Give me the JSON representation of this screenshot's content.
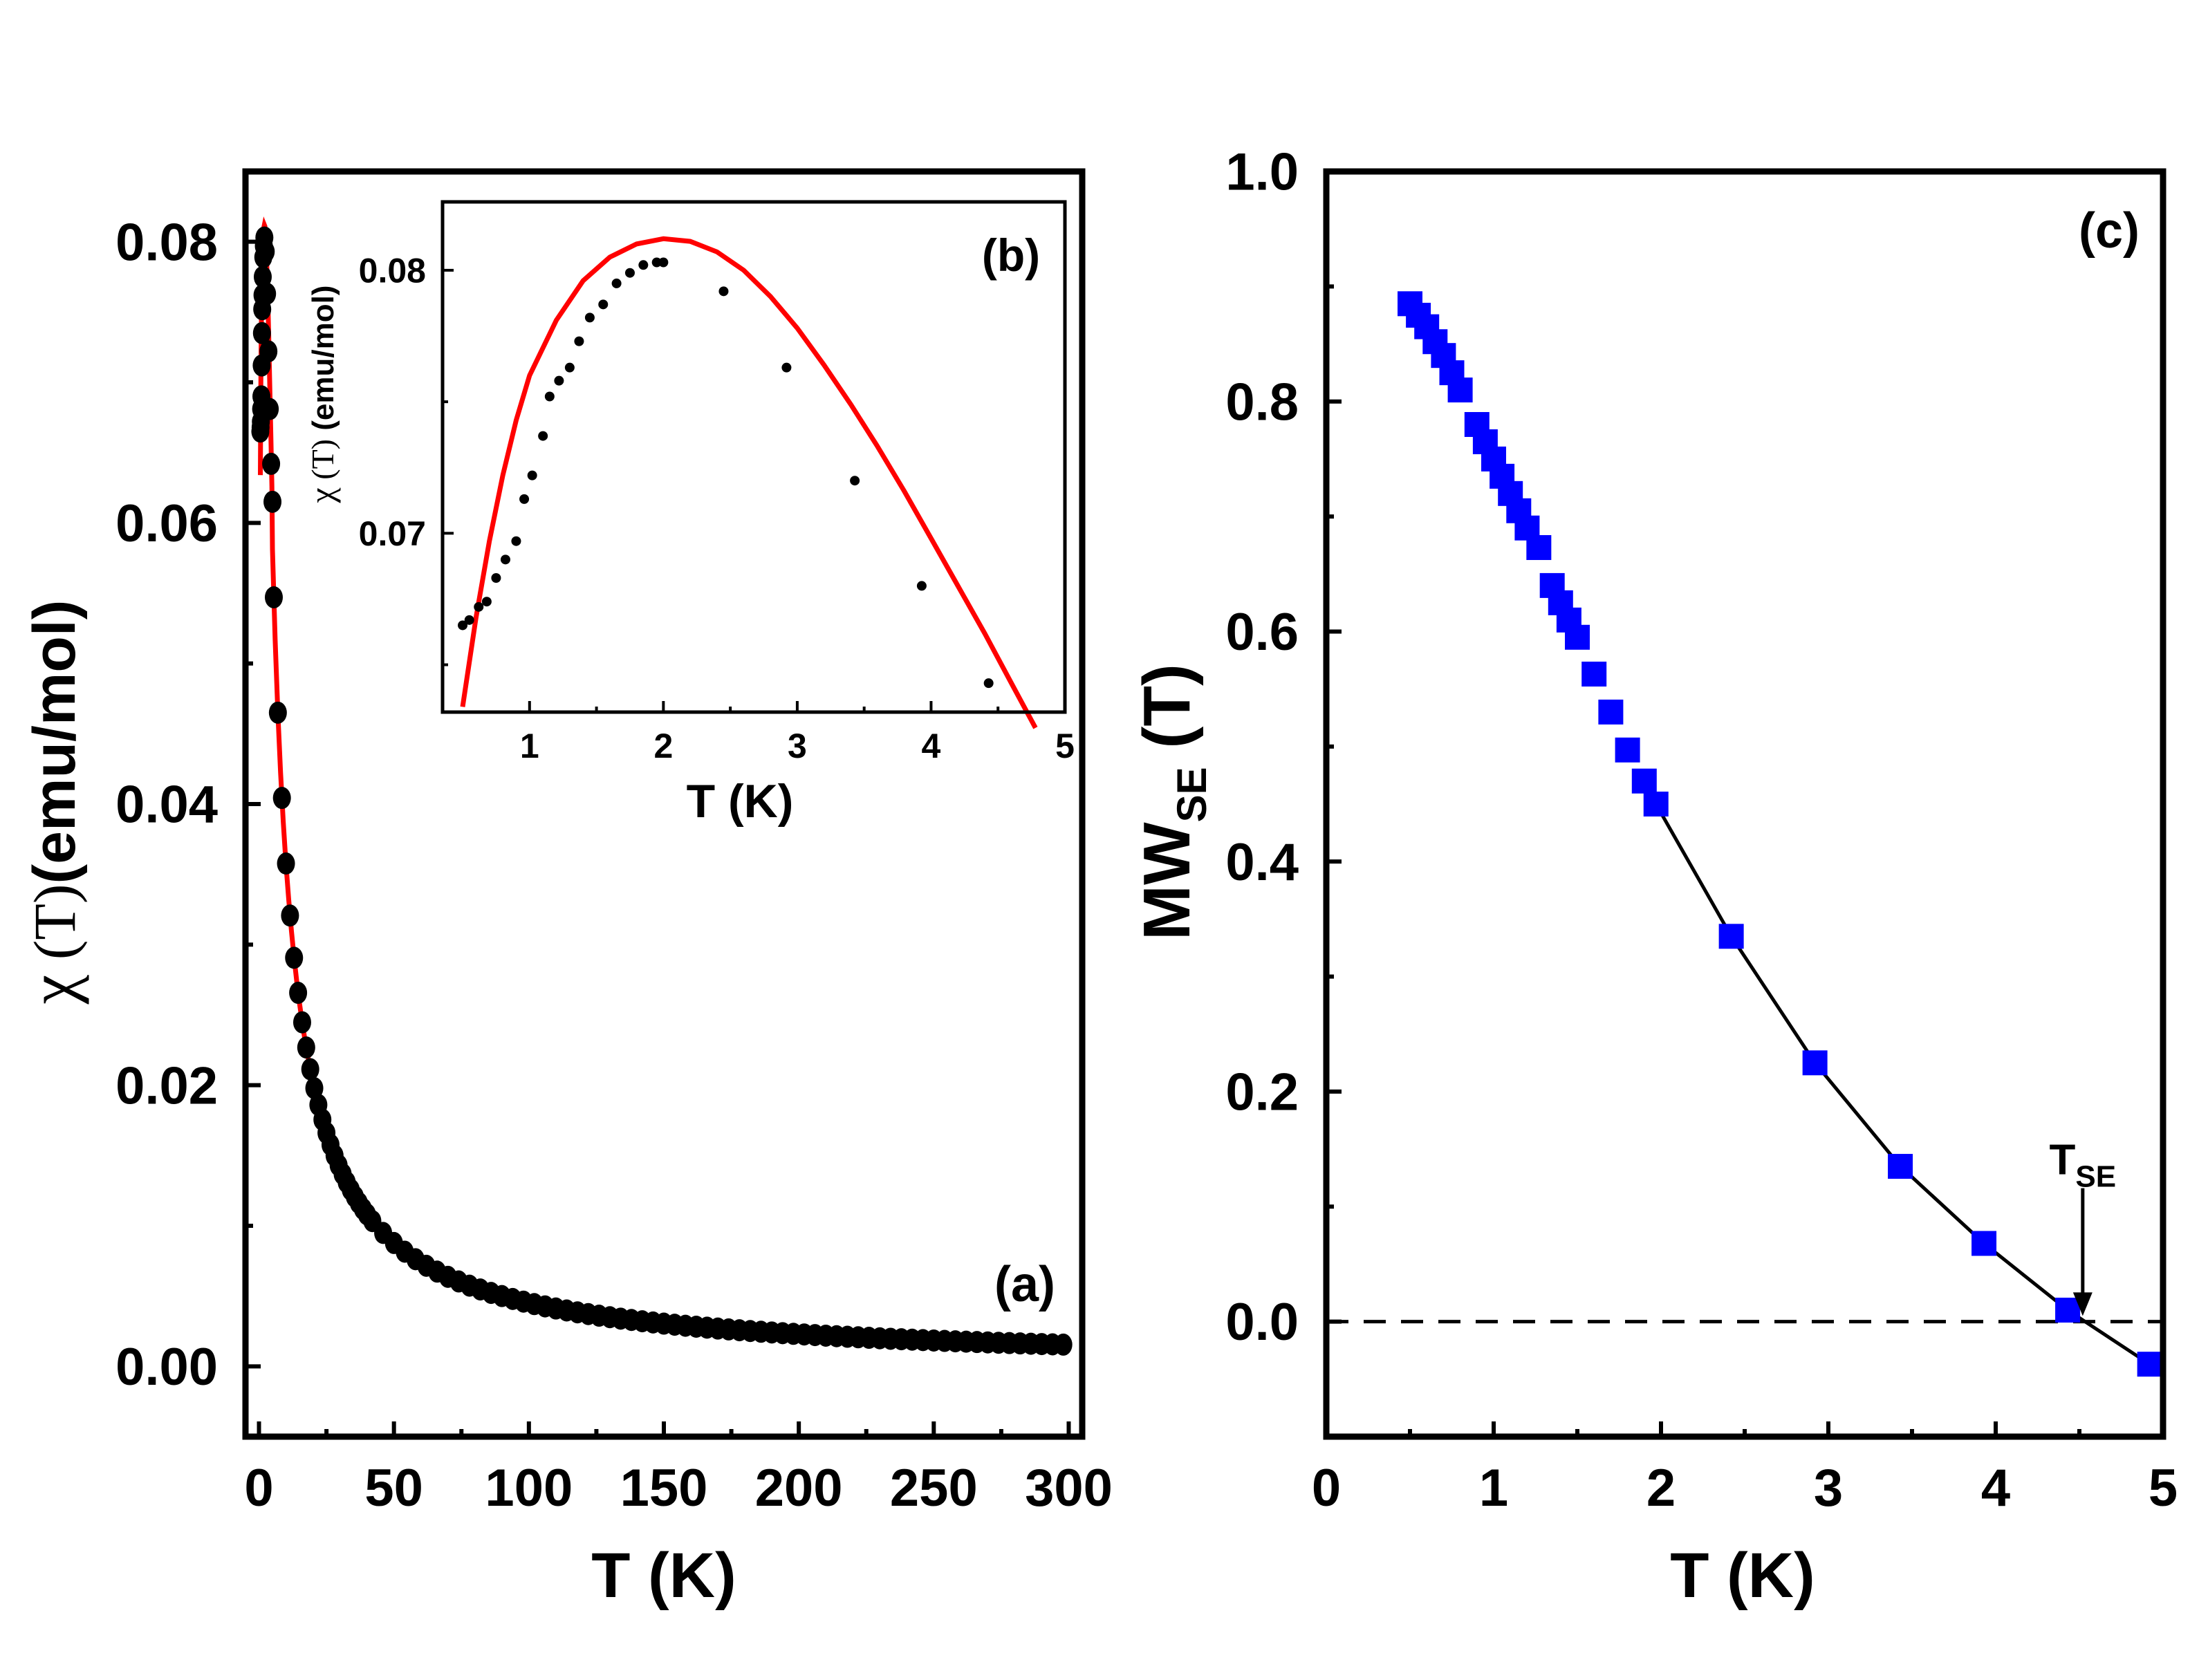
{
  "chart_data": [
    {
      "type": "scatter",
      "panel_label": "(a)",
      "xlabel": "T (K)",
      "ylabel_parts": {
        "symbol": "χ",
        "func": " (T)",
        "unit": "(emu/mol)"
      },
      "xlim": [
        -5,
        305
      ],
      "ylim": [
        -0.005,
        0.085
      ],
      "xticks": [
        0,
        50,
        100,
        150,
        200,
        250,
        300
      ],
      "xtick_labels": [
        "0",
        "50",
        "100",
        "150",
        "200",
        "250",
        "300"
      ],
      "yticks": [
        0,
        0.02,
        0.04,
        0.06,
        0.08
      ],
      "ytick_labels": [
        "0.00",
        "0.02",
        "0.04",
        "0.06",
        "0.08"
      ],
      "series": [
        {
          "kind": "points",
          "color": "#000000",
          "model": "c/(T+theta)",
          "c": 0.465,
          "theta": 3.0
        },
        {
          "kind": "line",
          "color": "#ff0000",
          "model": "fit"
        }
      ],
      "low_T_points": [
        [
          0.5,
          0.0665
        ],
        [
          0.6,
          0.0668
        ],
        [
          0.7,
          0.0672
        ],
        [
          0.8,
          0.0681
        ],
        [
          0.9,
          0.069
        ],
        [
          1.0,
          0.0712
        ],
        [
          1.1,
          0.0735
        ],
        [
          1.2,
          0.0752
        ],
        [
          1.3,
          0.0762
        ],
        [
          1.4,
          0.0775
        ],
        [
          1.6,
          0.0789
        ],
        [
          1.8,
          0.0797
        ],
        [
          2.0,
          0.0803
        ],
        [
          2.5,
          0.0793
        ],
        [
          3.0,
          0.0763
        ],
        [
          3.5,
          0.0722
        ],
        [
          4.0,
          0.0681
        ],
        [
          4.5,
          0.0642
        ],
        [
          5.0,
          0.0615
        ]
      ]
    },
    {
      "type": "scatter",
      "panel_label": "(b)",
      "xlabel": "T (K)",
      "ylabel_parts": {
        "symbol": "χ",
        "func": " (T)",
        "unit": " (emu/mol)"
      },
      "xlim": [
        0.35,
        5.0
      ],
      "ylim": [
        0.0632,
        0.0826
      ],
      "xticks": [
        1,
        2,
        3,
        4,
        5
      ],
      "xtick_labels": [
        "1",
        "2",
        "3",
        "4",
        "5"
      ],
      "yticks": [
        0.07,
        0.08
      ],
      "ytick_labels": [
        "0.07",
        "0.08"
      ],
      "points": [
        [
          0.5,
          0.0665
        ],
        [
          0.55,
          0.0667
        ],
        [
          0.62,
          0.0672
        ],
        [
          0.68,
          0.0674
        ],
        [
          0.75,
          0.0683
        ],
        [
          0.82,
          0.069
        ],
        [
          0.9,
          0.0697
        ],
        [
          0.96,
          0.0713
        ],
        [
          1.02,
          0.0722
        ],
        [
          1.1,
          0.0737
        ],
        [
          1.15,
          0.0752
        ],
        [
          1.22,
          0.0758
        ],
        [
          1.3,
          0.0763
        ],
        [
          1.37,
          0.0773
        ],
        [
          1.45,
          0.0782
        ],
        [
          1.55,
          0.0787
        ],
        [
          1.65,
          0.0795
        ],
        [
          1.75,
          0.0799
        ],
        [
          1.85,
          0.0802
        ],
        [
          1.95,
          0.0803
        ],
        [
          2.0,
          0.0803
        ],
        [
          2.45,
          0.0792
        ],
        [
          2.92,
          0.0763
        ],
        [
          3.43,
          0.072
        ],
        [
          3.93,
          0.068
        ],
        [
          4.43,
          0.0643
        ]
      ],
      "fit_line": [
        [
          0.5,
          0.0634
        ],
        [
          0.6,
          0.0668
        ],
        [
          0.7,
          0.0697
        ],
        [
          0.8,
          0.0722
        ],
        [
          0.9,
          0.0743
        ],
        [
          1.0,
          0.076
        ],
        [
          1.2,
          0.0781
        ],
        [
          1.4,
          0.0796
        ],
        [
          1.6,
          0.0805
        ],
        [
          1.8,
          0.081
        ],
        [
          2.0,
          0.0812
        ],
        [
          2.2,
          0.0811
        ],
        [
          2.4,
          0.0807
        ],
        [
          2.6,
          0.08
        ],
        [
          2.8,
          0.079
        ],
        [
          3.0,
          0.0778
        ],
        [
          3.2,
          0.0764
        ],
        [
          3.4,
          0.0749
        ],
        [
          3.6,
          0.0733
        ],
        [
          3.8,
          0.0716
        ],
        [
          4.0,
          0.0698
        ],
        [
          4.2,
          0.068
        ],
        [
          4.4,
          0.0662
        ],
        [
          4.6,
          0.0643
        ],
        [
          4.78,
          0.0626
        ]
      ],
      "point_color": "#000000",
      "line_color": "#ff0000"
    },
    {
      "type": "scatter",
      "panel_label": "(c)",
      "xlabel": "T (K)",
      "ylabel_parts": {
        "main": "MW",
        "sub": "SE",
        "unit": " (T)"
      },
      "xlim": [
        0,
        5
      ],
      "ylim": [
        -0.1,
        1.0
      ],
      "xticks": [
        0,
        1,
        2,
        3,
        4,
        5
      ],
      "xtick_labels": [
        "0",
        "1",
        "2",
        "3",
        "4",
        "5"
      ],
      "yticks": [
        0.0,
        0.2,
        0.4,
        0.6,
        0.8,
        1.0
      ],
      "ytick_labels": [
        "0.0",
        "0.2",
        "0.4",
        "0.6",
        "0.8",
        "1.0"
      ],
      "points": [
        [
          0.5,
          0.885
        ],
        [
          0.55,
          0.875
        ],
        [
          0.6,
          0.865
        ],
        [
          0.65,
          0.852
        ],
        [
          0.7,
          0.84
        ],
        [
          0.75,
          0.825
        ],
        [
          0.8,
          0.81
        ],
        [
          0.9,
          0.78
        ],
        [
          0.95,
          0.765
        ],
        [
          1.0,
          0.75
        ],
        [
          1.05,
          0.735
        ],
        [
          1.1,
          0.72
        ],
        [
          1.15,
          0.705
        ],
        [
          1.2,
          0.69
        ],
        [
          1.27,
          0.673
        ],
        [
          1.35,
          0.64
        ],
        [
          1.4,
          0.625
        ],
        [
          1.45,
          0.61
        ],
        [
          1.5,
          0.595
        ],
        [
          1.6,
          0.563
        ],
        [
          1.7,
          0.53
        ],
        [
          1.8,
          0.497
        ],
        [
          1.9,
          0.47
        ],
        [
          1.97,
          0.45
        ],
        [
          2.42,
          0.335
        ],
        [
          2.92,
          0.225
        ],
        [
          3.43,
          0.135
        ],
        [
          3.93,
          0.068
        ],
        [
          4.43,
          0.01
        ],
        [
          4.92,
          -0.037
        ]
      ],
      "line_from_x": 2.0,
      "point_color": "#0000ff",
      "line_color": "#000000",
      "zero_line": "dashed",
      "annotation": {
        "main": "T",
        "sub": "SE",
        "x": 4.52
      }
    }
  ]
}
